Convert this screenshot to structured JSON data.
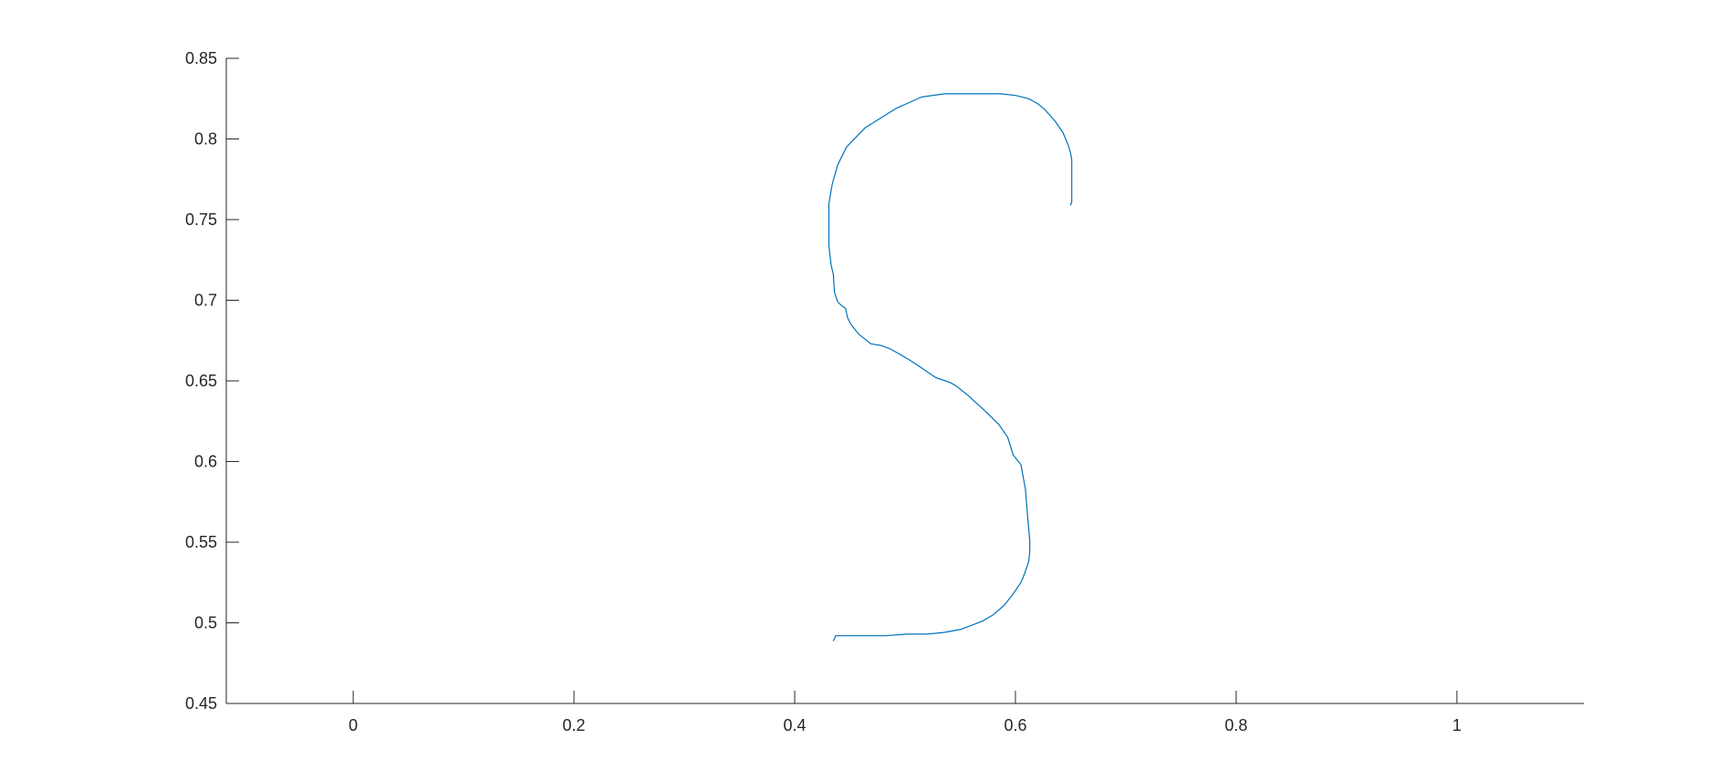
{
  "chart_data": {
    "type": "line",
    "title": "",
    "xlabel": "",
    "ylabel": "",
    "xlim": [
      -0.115,
      1.115
    ],
    "ylim": [
      0.45,
      0.85
    ],
    "xticks": [
      0,
      0.2,
      0.4,
      0.6,
      0.8,
      1
    ],
    "xtick_labels": [
      "0",
      "0.2",
      "0.4",
      "0.6",
      "0.8",
      "1"
    ],
    "yticks": [
      0.45,
      0.5,
      0.55,
      0.6,
      0.65,
      0.7,
      0.75,
      0.8,
      0.85
    ],
    "ytick_labels": [
      "0.45",
      "0.5",
      "0.55",
      "0.6",
      "0.65",
      "0.7",
      "0.75",
      "0.8",
      "0.85"
    ],
    "grid": false,
    "legend": "none",
    "box": false,
    "series": [
      {
        "color": "#0072bd",
        "x": [
          0.65,
          0.651,
          0.651,
          0.65,
          0.648,
          0.643,
          0.636,
          0.627,
          0.62,
          0.612,
          0.6,
          0.586,
          0.561,
          0.536,
          0.515,
          0.492,
          0.464,
          0.447,
          0.439,
          0.434,
          0.431,
          0.431,
          0.433,
          0.435,
          0.436,
          0.439,
          0.442,
          0.446,
          0.448,
          0.451,
          0.458,
          0.469,
          0.478,
          0.486,
          0.494,
          0.504,
          0.515,
          0.528,
          0.541,
          0.546,
          0.557,
          0.573,
          0.585,
          0.593,
          0.598,
          0.605,
          0.609,
          0.611,
          0.613,
          0.613,
          0.612,
          0.608,
          0.605,
          0.597,
          0.59,
          0.58,
          0.57,
          0.551,
          0.535,
          0.52,
          0.502,
          0.482,
          0.467,
          0.452,
          0.437,
          0.436,
          0.435
        ],
        "y": [
          0.759,
          0.761,
          0.787,
          0.791,
          0.796,
          0.804,
          0.811,
          0.818,
          0.822,
          0.825,
          0.827,
          0.828,
          0.828,
          0.828,
          0.826,
          0.819,
          0.807,
          0.795,
          0.784,
          0.772,
          0.76,
          0.734,
          0.722,
          0.716,
          0.705,
          0.699,
          0.697,
          0.695,
          0.689,
          0.685,
          0.679,
          0.673,
          0.672,
          0.67,
          0.667,
          0.663,
          0.658,
          0.652,
          0.649,
          0.647,
          0.641,
          0.631,
          0.623,
          0.615,
          0.604,
          0.598,
          0.583,
          0.566,
          0.551,
          0.544,
          0.538,
          0.53,
          0.525,
          0.517,
          0.511,
          0.505,
          0.501,
          0.496,
          0.494,
          0.493,
          0.493,
          0.492,
          0.492,
          0.492,
          0.492,
          0.49,
          0.489
        ]
      }
    ]
  }
}
